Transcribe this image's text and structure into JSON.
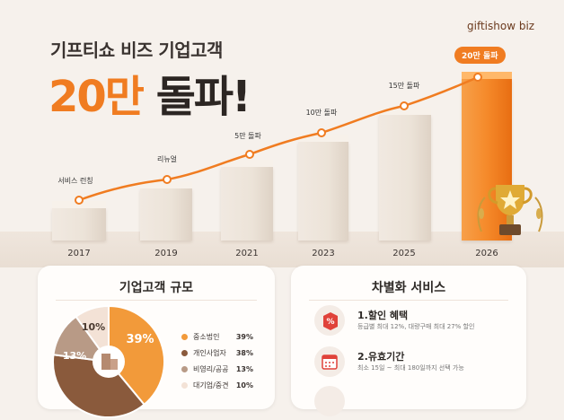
{
  "brand": "giftishow biz",
  "subtitle": "기프티쇼 비즈 기업고객",
  "headline": {
    "accent": "20만",
    "dark": "돌파!"
  },
  "timeline": [
    {
      "year": "2017",
      "milestone": "서비스 런칭"
    },
    {
      "year": "2019",
      "milestone": "리뉴얼"
    },
    {
      "year": "2021",
      "milestone": "5만 돌파"
    },
    {
      "year": "2023",
      "milestone": "10만 돌파"
    },
    {
      "year": "2025",
      "milestone": "15만 돌파"
    },
    {
      "year": "2026",
      "milestone": "20만 돌파"
    }
  ],
  "segments": {
    "title": "기업고객 규모",
    "items": [
      {
        "label": "중소법인",
        "value": "39%",
        "color": "#f29a3a"
      },
      {
        "label": "개인사업자",
        "value": "38%",
        "color": "#8a5a3c"
      },
      {
        "label": "비영리/공공",
        "value": "13%",
        "color": "#b89a86"
      },
      {
        "label": "대기업/중견",
        "value": "10%",
        "color": "#f3e2d6"
      }
    ],
    "slice_labels": [
      "39%",
      "13%",
      "10%"
    ]
  },
  "services": {
    "title": "차별화 서비스",
    "items": [
      {
        "title": "1.할인 혜택",
        "desc": "등급별 최대 12%, 대량구매 최대 27% 할인",
        "icon": "discount-tag-icon"
      },
      {
        "title": "2.유효기간",
        "desc": "최소 15일 ~ 최대 180일까지 선택 가능",
        "icon": "calendar-icon"
      }
    ]
  }
}
